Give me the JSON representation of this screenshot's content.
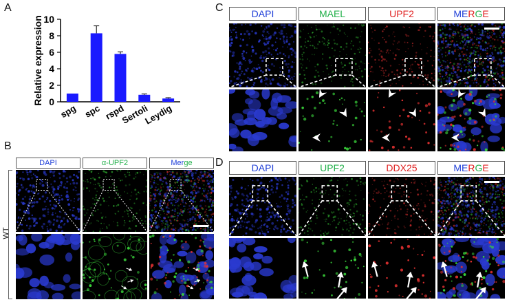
{
  "panel_labels": {
    "a": "A",
    "b": "B",
    "c": "C",
    "d": "D"
  },
  "chart_data": {
    "type": "bar",
    "categories": [
      "spg",
      "spc",
      "rspd",
      "Sertoli",
      "Leydig"
    ],
    "values": [
      1.0,
      8.3,
      5.8,
      0.85,
      0.4
    ],
    "errors": [
      0.0,
      0.9,
      0.25,
      0.1,
      0.1
    ],
    "ylabel": "Relative  expression",
    "xlabel": "",
    "ylim": [
      0,
      10
    ],
    "yticks": [
      "0",
      "2",
      "4",
      "6",
      "8",
      "10"
    ],
    "bar_color": "#1a1aff",
    "grid": false
  },
  "panel_b": {
    "headers": [
      {
        "text": "DAPI",
        "color": "#1f3fd8"
      },
      {
        "text": "α-UPF2",
        "color": "#22b04a"
      },
      {
        "parts": [
          {
            "t": "Mer",
            "color": "#1f3fd8"
          },
          {
            "t": "ge",
            "color": "#22b04a"
          }
        ]
      }
    ],
    "row_label": "WT"
  },
  "panel_c": {
    "headers": [
      {
        "text": "DAPI",
        "color": "#1f3fd8"
      },
      {
        "text": "MAEL",
        "color": "#22b04a"
      },
      {
        "text": "UPF2",
        "color": "#e02020"
      },
      {
        "parts": [
          {
            "t": "ME",
            "color": "#1f3fd8"
          },
          {
            "t": "R",
            "color": "#e02020"
          },
          {
            "t": "G",
            "color": "#22b04a"
          },
          {
            "t": "E",
            "color": "#e02020"
          }
        ]
      }
    ]
  },
  "panel_d": {
    "headers": [
      {
        "text": "DAPI",
        "color": "#1f3fd8"
      },
      {
        "text": "UPF2",
        "color": "#22b04a"
      },
      {
        "text": "DDX25",
        "color": "#e02020"
      },
      {
        "parts": [
          {
            "t": "ME",
            "color": "#1f3fd8"
          },
          {
            "t": "R",
            "color": "#e02020"
          },
          {
            "t": "G",
            "color": "#22b04a"
          },
          {
            "t": "E",
            "color": "#e02020"
          }
        ]
      }
    ]
  }
}
